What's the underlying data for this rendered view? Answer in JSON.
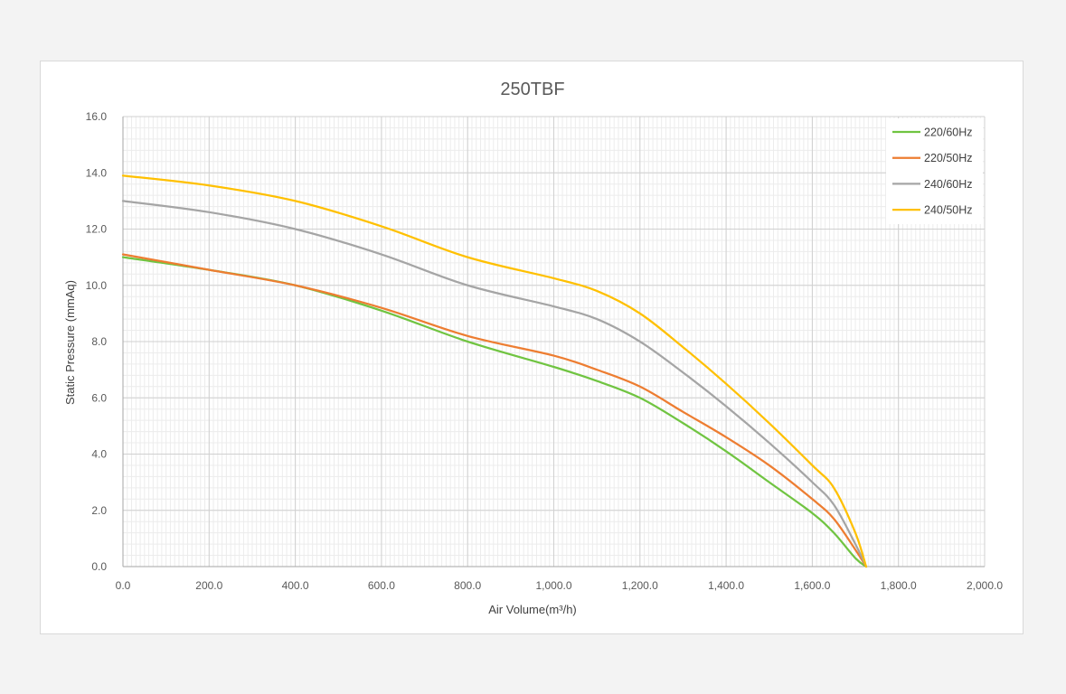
{
  "chart_data": {
    "type": "line",
    "title": "250TBF",
    "xlabel": "Air Volume(m³/h)",
    "ylabel": "Static Pressure (mmAq)",
    "xlim": [
      0,
      2000
    ],
    "ylim": [
      0,
      16
    ],
    "x_ticks": [
      "0.0",
      "200.0",
      "400.0",
      "600.0",
      "800.0",
      "1,000.0",
      "1,200.0",
      "1,400.0",
      "1,600.0",
      "1,800.0",
      "2,000.0"
    ],
    "y_ticks": [
      "0.0",
      "2.0",
      "4.0",
      "6.0",
      "8.0",
      "10.0",
      "12.0",
      "14.0",
      "16.0"
    ],
    "grid": true,
    "minor_grid": true,
    "legend_position": "top-right",
    "series": [
      {
        "name": "220/60Hz",
        "color": "#70c441",
        "x": [
          0,
          200,
          400,
          600,
          800,
          1000,
          1100,
          1200,
          1300,
          1400,
          1500,
          1600,
          1650,
          1700,
          1725
        ],
        "y": [
          11.0,
          10.55,
          10.0,
          9.1,
          8.0,
          7.1,
          6.6,
          6.0,
          5.1,
          4.1,
          3.0,
          1.9,
          1.2,
          0.3,
          0.0
        ]
      },
      {
        "name": "220/50Hz",
        "color": "#ed7d31",
        "x": [
          0,
          200,
          400,
          600,
          800,
          1000,
          1100,
          1200,
          1300,
          1400,
          1500,
          1600,
          1650,
          1700,
          1725
        ],
        "y": [
          11.1,
          10.55,
          10.0,
          9.2,
          8.2,
          7.5,
          7.0,
          6.4,
          5.5,
          4.6,
          3.6,
          2.4,
          1.7,
          0.6,
          0.0
        ]
      },
      {
        "name": "240/60Hz",
        "color": "#a5a5a5",
        "x": [
          0,
          200,
          400,
          600,
          800,
          1000,
          1100,
          1200,
          1300,
          1400,
          1500,
          1600,
          1650,
          1700,
          1725
        ],
        "y": [
          13.0,
          12.6,
          12.0,
          11.1,
          10.0,
          9.25,
          8.8,
          8.0,
          6.9,
          5.7,
          4.4,
          3.0,
          2.2,
          0.8,
          0.0
        ]
      },
      {
        "name": "240/50Hz",
        "color": "#ffc000",
        "x": [
          0,
          200,
          400,
          600,
          800,
          1000,
          1100,
          1200,
          1300,
          1400,
          1500,
          1600,
          1650,
          1700,
          1725
        ],
        "y": [
          13.9,
          13.55,
          13.0,
          12.1,
          11.0,
          10.25,
          9.8,
          9.0,
          7.8,
          6.5,
          5.1,
          3.6,
          2.8,
          1.2,
          0.0
        ]
      }
    ]
  }
}
